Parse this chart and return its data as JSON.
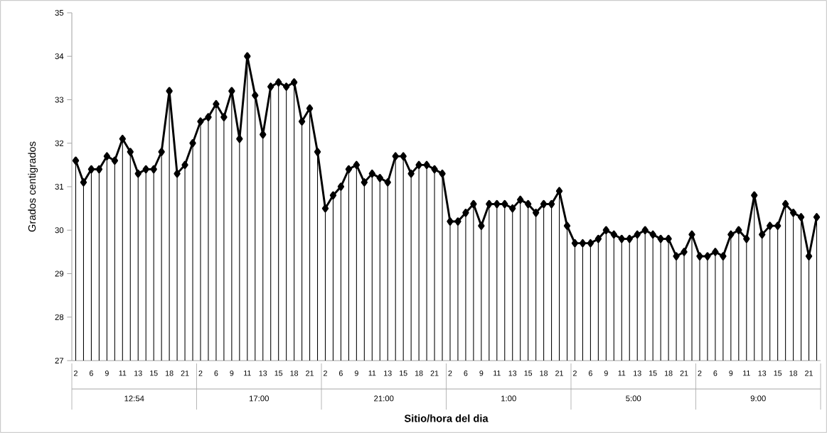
{
  "chart_data": {
    "type": "line",
    "xlabel": "Sitio/hora del dia",
    "ylabel": "Grados centigrados",
    "categories": [
      "2",
      null,
      "6",
      null,
      "9",
      null,
      "11",
      null,
      "13",
      null,
      "15",
      null,
      "18",
      null,
      "21",
      null,
      "2",
      null,
      "6",
      null,
      "9",
      null,
      "11",
      null,
      "13",
      null,
      "15",
      null,
      "18",
      null,
      "21",
      null,
      "2",
      null,
      "6",
      null,
      "9",
      null,
      "11",
      null,
      "13",
      null,
      "15",
      null,
      "18",
      null,
      "21",
      null,
      "2",
      null,
      "6",
      null,
      "9",
      null,
      "11",
      null,
      "13",
      null,
      "15",
      null,
      "18",
      null,
      "21",
      null,
      "2",
      null,
      "6",
      null,
      "9",
      null,
      "11",
      null,
      "13",
      null,
      "15",
      null,
      "18",
      null,
      "21",
      null,
      "2",
      null,
      "6",
      null,
      "9",
      null,
      "11",
      null,
      "13",
      null,
      "15",
      null,
      "18",
      null,
      "21",
      null
    ],
    "annotations": [
      "12:54",
      "17:00",
      "21:00",
      "1:00",
      "5:00",
      "9:00"
    ],
    "series": [
      {
        "type": "lollipop",
        "color": "#000000",
        "values": [
          31.6,
          31.1,
          31.4,
          31.4,
          31.7,
          31.6,
          32.1,
          31.8,
          31.3,
          31.4,
          31.4,
          31.8,
          33.2,
          31.3,
          31.5,
          32.0,
          32.5,
          32.6,
          32.9,
          32.6,
          33.2,
          32.1,
          34.0,
          33.1,
          32.2,
          33.3,
          33.4,
          33.3,
          33.4,
          32.5,
          32.8,
          31.8,
          30.5,
          30.8,
          31.0,
          31.4,
          31.5,
          31.1,
          31.3,
          31.2,
          31.1,
          31.7,
          31.7,
          31.3,
          31.5,
          31.5,
          31.4,
          31.3,
          30.2,
          30.2,
          30.4,
          30.6,
          30.1,
          30.6,
          30.6,
          30.6,
          30.5,
          30.7,
          30.6,
          30.4,
          30.6,
          30.6,
          30.9,
          30.1,
          29.7,
          29.7,
          29.7,
          29.8,
          30.0,
          29.9,
          29.8,
          29.8,
          29.9,
          30.0,
          29.9,
          29.8,
          29.8,
          29.4,
          29.5,
          29.9,
          29.4,
          29.4,
          29.5,
          29.4,
          29.9,
          30.0,
          29.8,
          30.8,
          29.9,
          30.1,
          30.1,
          30.6,
          30.4,
          30.3,
          29.4,
          30.3
        ]
      },
      {
        "color": "#000000",
        "values": [
          31.6,
          31.1,
          31.4,
          31.4,
          31.7,
          31.6,
          32.1,
          31.8,
          31.3,
          31.4,
          31.4,
          31.8,
          33.2,
          31.3,
          31.5,
          32.0,
          32.5,
          32.6,
          32.9,
          32.6,
          33.2,
          32.1,
          34.0,
          33.1,
          32.2,
          33.3,
          33.4,
          33.3,
          33.4,
          32.5,
          32.8,
          31.8,
          30.5,
          30.8,
          31.0,
          31.4,
          31.5,
          31.1,
          31.3,
          31.2,
          31.1,
          31.7,
          31.7,
          31.3,
          31.5,
          31.5,
          31.4,
          31.3,
          30.2,
          30.2,
          30.4,
          30.6,
          30.1,
          30.6,
          30.6,
          30.6,
          30.5,
          30.7,
          30.6,
          30.4,
          30.6,
          30.6,
          30.9,
          30.1,
          29.7,
          29.7,
          29.7,
          29.8,
          30.0,
          29.9,
          29.8,
          29.8,
          29.9,
          30.0,
          29.9,
          29.8,
          29.8,
          29.4,
          29.5,
          29.9,
          29.4,
          29.4,
          29.5,
          29.4,
          29.9,
          30.0,
          29.8,
          30.8,
          29.9,
          30.1,
          30.1,
          30.6,
          30.4,
          30.3,
          29.4,
          30.3
        ]
      }
    ],
    "ylim": [
      27,
      35
    ],
    "yticks": [
      27,
      28,
      29,
      30,
      31,
      32,
      33,
      34,
      35
    ],
    "marker": "diamond",
    "line_style": "solid"
  }
}
